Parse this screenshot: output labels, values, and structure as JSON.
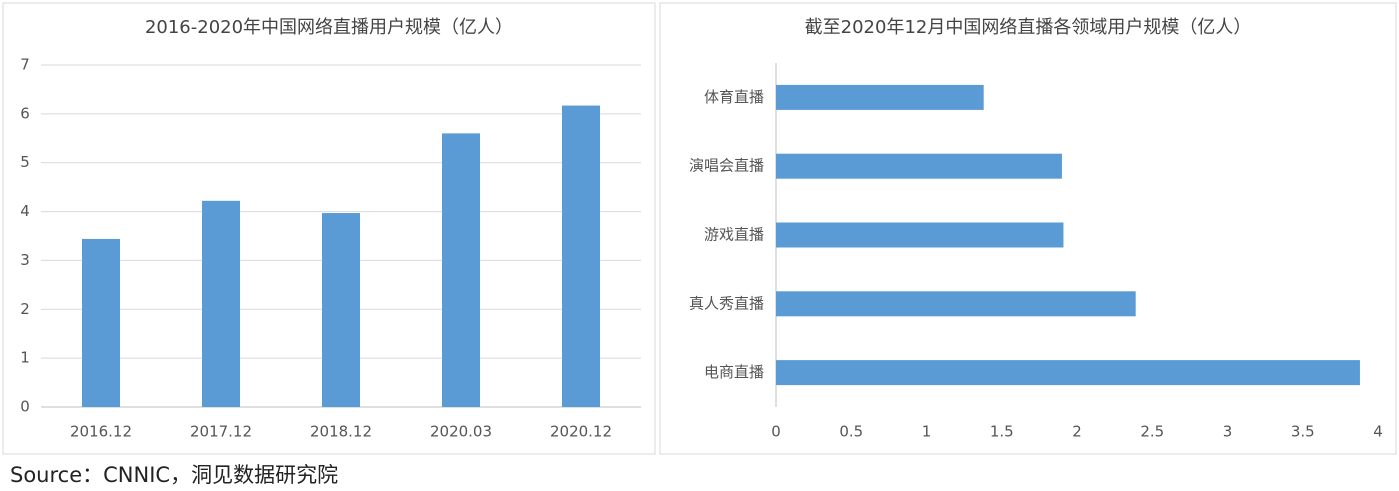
{
  "chart_data": [
    {
      "type": "bar",
      "title": "2016-2020年中国网络直播用户规模（亿人）",
      "categories": [
        "2016.12",
        "2017.12",
        "2018.12",
        "2020.03",
        "2020.12"
      ],
      "values": [
        3.44,
        4.22,
        3.97,
        5.6,
        6.17
      ],
      "color": "#5b9bd5",
      "ylim": [
        0,
        7
      ],
      "yticks": [
        0,
        1,
        2,
        3,
        4,
        5,
        6,
        7
      ],
      "grid": true
    },
    {
      "type": "bar",
      "orientation": "horizontal",
      "title": "截至2020年12月中国网络直播各领域用户规模（亿人）",
      "categories": [
        "体育直播",
        "演唱会直播",
        "游戏直播",
        "真人秀直播",
        "电商直播"
      ],
      "values": [
        1.38,
        1.9,
        1.91,
        2.39,
        3.88
      ],
      "color": "#5b9bd5",
      "xlim": [
        0,
        4
      ],
      "xticks": [
        0,
        0.5,
        1,
        1.5,
        2,
        2.5,
        3,
        3.5,
        4
      ],
      "grid": false
    }
  ],
  "source": "Source：CNNIC，洞见数据研究院"
}
